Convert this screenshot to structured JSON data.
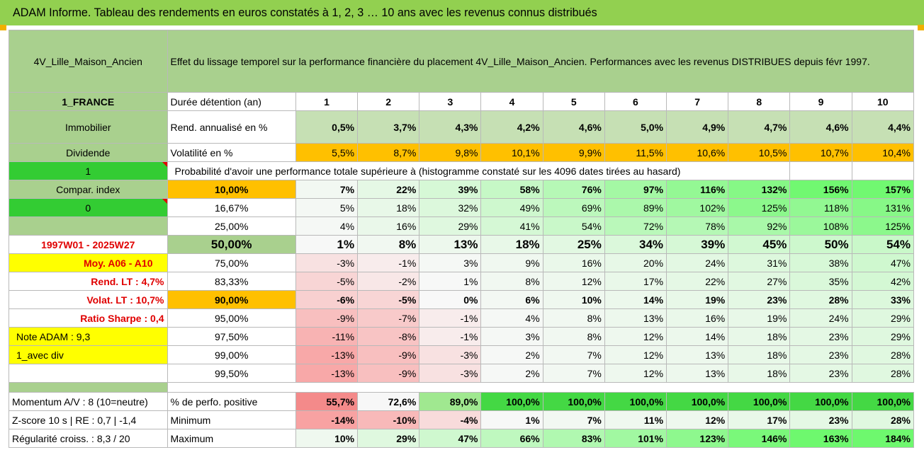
{
  "header": {
    "title": "ADAM Informe. Tableau des rendements en euros constatés à 1, 2, 3 … 10 ans avec les revenus connus distribués"
  },
  "colors": {
    "header_green": "#92d050",
    "orange": "#ffc000",
    "yellow": "#ffff00",
    "bright_green": "#33cc33",
    "red_text": "#e00000",
    "pale_red": "#f4a6a6",
    "strong_green": "#3dd63d"
  },
  "side": {
    "name": "4V_Lille_Maison_Ancien",
    "country": "1_FRANCE",
    "category": "Immobilier",
    "type": "Dividende",
    "one": "1",
    "compar": "Compar. index",
    "zero": "0",
    "period": "1997W01 - 2025W27",
    "moy": "Moy. A06 - A10",
    "rend_lt": "Rend. LT :    4,7%",
    "volat_lt": "Volat. LT :    10,7%",
    "sharpe": "Ratio Sharpe :    0,4",
    "note": "Note ADAM : 9,3",
    "avec_div": "1_avec div",
    "momentum": "Momentum A/V : 8 (10=neutre)",
    "zscore": "Z-score 10 s | RE : 0,7 | -1,4",
    "regularite": "Régularité croiss. : 8,3 / 20"
  },
  "main": {
    "effect_text": "Effet du lissage temporel sur la performance financière du placement 4V_Lille_Maison_Ancien. Performances avec les revenus DISTRIBUES depuis févr 1997.",
    "prob_text": "Probabilité d'avoir une performance totale supérieure à (histogramme constaté sur les 4096 dates tirées au hasard)"
  },
  "stats": {
    "duration_label": "Durée détention (an)",
    "years": [
      "1",
      "2",
      "3",
      "4",
      "5",
      "6",
      "7",
      "8",
      "9",
      "10"
    ],
    "rend_label": "Rend. annualisé en %",
    "rend": [
      "0,5%",
      "3,7%",
      "4,3%",
      "4,2%",
      "4,6%",
      "5,0%",
      "4,9%",
      "4,7%",
      "4,6%",
      "4,4%"
    ],
    "vol_label": "Volatilité en %",
    "vol": [
      "5,5%",
      "8,7%",
      "9,8%",
      "10,1%",
      "9,9%",
      "11,5%",
      "10,6%",
      "10,5%",
      "10,7%",
      "10,4%"
    ]
  },
  "probability_rows": [
    {
      "threshold": "10,00%",
      "values": [
        "7%",
        "22%",
        "39%",
        "58%",
        "76%",
        "97%",
        "116%",
        "132%",
        "156%",
        "157%"
      ]
    },
    {
      "threshold": "16,67%",
      "values": [
        "5%",
        "18%",
        "32%",
        "49%",
        "69%",
        "89%",
        "102%",
        "125%",
        "118%",
        "131%"
      ]
    },
    {
      "threshold": "25,00%",
      "values": [
        "4%",
        "16%",
        "29%",
        "41%",
        "54%",
        "72%",
        "78%",
        "92%",
        "108%",
        "125%"
      ]
    },
    {
      "threshold": "50,00%",
      "values": [
        "1%",
        "8%",
        "13%",
        "18%",
        "25%",
        "34%",
        "39%",
        "45%",
        "50%",
        "54%"
      ]
    },
    {
      "threshold": "75,00%",
      "values": [
        "-3%",
        "-1%",
        "3%",
        "9%",
        "16%",
        "20%",
        "24%",
        "31%",
        "38%",
        "47%"
      ]
    },
    {
      "threshold": "83,33%",
      "values": [
        "-5%",
        "-2%",
        "1%",
        "8%",
        "12%",
        "17%",
        "22%",
        "27%",
        "35%",
        "42%"
      ]
    },
    {
      "threshold": "90,00%",
      "values": [
        "-6%",
        "-5%",
        "0%",
        "6%",
        "10%",
        "14%",
        "19%",
        "23%",
        "28%",
        "33%"
      ]
    },
    {
      "threshold": "95,00%",
      "values": [
        "-9%",
        "-7%",
        "-1%",
        "4%",
        "8%",
        "13%",
        "16%",
        "19%",
        "24%",
        "29%"
      ]
    },
    {
      "threshold": "97,50%",
      "values": [
        "-11%",
        "-8%",
        "-1%",
        "3%",
        "8%",
        "12%",
        "14%",
        "18%",
        "23%",
        "29%"
      ]
    },
    {
      "threshold": "99,00%",
      "values": [
        "-13%",
        "-9%",
        "-3%",
        "2%",
        "7%",
        "12%",
        "13%",
        "18%",
        "23%",
        "28%"
      ]
    },
    {
      "threshold": "99,50%",
      "values": [
        "-13%",
        "-9%",
        "-3%",
        "2%",
        "7%",
        "12%",
        "13%",
        "18%",
        "23%",
        "28%"
      ]
    }
  ],
  "bottom": {
    "pos_label": "% de perfo. positive",
    "pos": [
      "55,7%",
      "72,6%",
      "89,0%",
      "100,0%",
      "100,0%",
      "100,0%",
      "100,0%",
      "100,0%",
      "100,0%",
      "100,0%"
    ],
    "min_label": "Minimum",
    "min": [
      "-14%",
      "-10%",
      "-4%",
      "1%",
      "7%",
      "11%",
      "12%",
      "17%",
      "23%",
      "28%"
    ],
    "max_label": "Maximum",
    "max": [
      "10%",
      "29%",
      "47%",
      "66%",
      "83%",
      "101%",
      "123%",
      "146%",
      "163%",
      "184%"
    ]
  }
}
